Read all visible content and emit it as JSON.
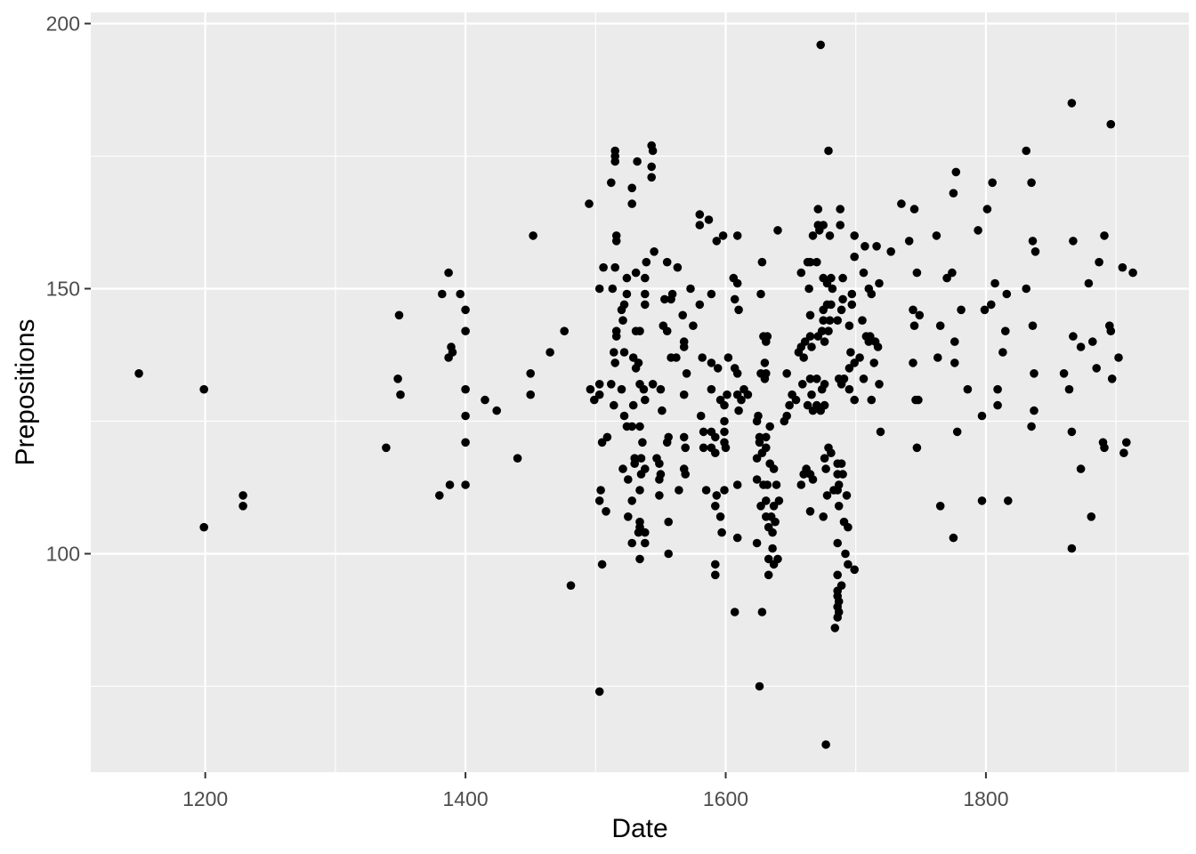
{
  "figure": {
    "background": "#FFFFFF"
  },
  "chart_data": {
    "type": "scatter",
    "title": "",
    "xlabel": "Date",
    "ylabel": "Prepositions",
    "xlim": [
      1112,
      1956
    ],
    "ylim": [
      58.8,
      202.1
    ],
    "x_major_ticks": [
      1200,
      1400,
      1600,
      1800
    ],
    "x_tick_labels": [
      "1200",
      "1400",
      "1600",
      "1800"
    ],
    "y_major_ticks": [
      100,
      150,
      200
    ],
    "y_tick_labels": [
      "100",
      "150",
      "200"
    ],
    "x_minor_ticks": [
      1300,
      1500,
      1700,
      1900
    ],
    "y_minor_ticks": [
      75,
      125,
      175
    ],
    "grid": true,
    "legend_position": "none",
    "panel_background": "#EBEBEB",
    "grid_color": "#FFFFFF",
    "point_color": "#000000",
    "tick_label_color": "#4D4D4D",
    "axis_title_color": "#000000",
    "tick_mark_color": "#333333",
    "point_radius_px": 4.8,
    "points": [
      [
        1149,
        134
      ],
      [
        1199,
        131
      ],
      [
        1199,
        105
      ],
      [
        1229,
        111
      ],
      [
        1229,
        109
      ],
      [
        1339,
        120
      ],
      [
        1348,
        133
      ],
      [
        1350,
        130
      ],
      [
        1380,
        111
      ],
      [
        1382,
        149
      ],
      [
        1387,
        153
      ],
      [
        1387,
        137
      ],
      [
        1388,
        113
      ],
      [
        1389,
        139
      ],
      [
        1390,
        138
      ],
      [
        1396,
        149
      ],
      [
        1349,
        145
      ],
      [
        1400,
        146
      ],
      [
        1400,
        142
      ],
      [
        1400,
        131
      ],
      [
        1400,
        126
      ],
      [
        1400,
        121
      ],
      [
        1400,
        113
      ],
      [
        1415,
        129
      ],
      [
        1424,
        127
      ],
      [
        1440,
        118
      ],
      [
        1450,
        134
      ],
      [
        1450,
        130
      ],
      [
        1452,
        160
      ],
      [
        1465,
        138
      ],
      [
        1476,
        142
      ],
      [
        1481,
        94
      ],
      [
        1495,
        166
      ],
      [
        1503,
        150
      ],
      [
        1506,
        154
      ],
      [
        1512,
        170
      ],
      [
        1513,
        150
      ],
      [
        1514,
        138
      ],
      [
        1515,
        176
      ],
      [
        1515,
        175
      ],
      [
        1515,
        174
      ],
      [
        1543,
        177
      ],
      [
        1544,
        176
      ],
      [
        1532,
        174
      ],
      [
        1543,
        173
      ],
      [
        1543,
        171
      ],
      [
        1528,
        169
      ],
      [
        1528,
        166
      ],
      [
        1580,
        164
      ],
      [
        1580,
        162
      ],
      [
        1587,
        163
      ],
      [
        1598,
        160
      ],
      [
        1593,
        159
      ],
      [
        1609,
        160
      ],
      [
        1516,
        160
      ],
      [
        1516,
        159
      ],
      [
        1545,
        157
      ],
      [
        1515,
        154
      ],
      [
        1555,
        155
      ],
      [
        1563,
        154
      ],
      [
        1539,
        155
      ],
      [
        1531,
        153
      ],
      [
        1524,
        152
      ],
      [
        1538,
        152
      ],
      [
        1524,
        149
      ],
      [
        1538,
        149
      ],
      [
        1522,
        147
      ],
      [
        1538,
        147
      ],
      [
        1559,
        149
      ],
      [
        1553,
        148
      ],
      [
        1558,
        148
      ],
      [
        1573,
        150
      ],
      [
        1589,
        149
      ],
      [
        1580,
        147
      ],
      [
        1520,
        146
      ],
      [
        1521,
        144
      ],
      [
        1567,
        145
      ],
      [
        1575,
        143
      ],
      [
        1516,
        142
      ],
      [
        1516,
        141
      ],
      [
        1531,
        142
      ],
      [
        1534,
        142
      ],
      [
        1552,
        143
      ],
      [
        1555,
        142
      ],
      [
        1568,
        140
      ],
      [
        1568,
        139
      ],
      [
        1522,
        138
      ],
      [
        1515,
        136
      ],
      [
        1529,
        137
      ],
      [
        1533,
        136
      ],
      [
        1531,
        135
      ],
      [
        1558,
        137
      ],
      [
        1562,
        137
      ],
      [
        1582,
        137
      ],
      [
        1589,
        136
      ],
      [
        1594,
        135
      ],
      [
        1570,
        134
      ],
      [
        1602,
        137
      ],
      [
        1607,
        135
      ],
      [
        1609,
        134
      ],
      [
        1606,
        152
      ],
      [
        1609,
        151
      ],
      [
        1607,
        148
      ],
      [
        1610,
        146
      ],
      [
        1496,
        131
      ],
      [
        1503,
        132
      ],
      [
        1503,
        130
      ],
      [
        1512,
        132
      ],
      [
        1499,
        129
      ],
      [
        1520,
        131
      ],
      [
        1534,
        132
      ],
      [
        1537,
        131
      ],
      [
        1544,
        132
      ],
      [
        1550,
        131
      ],
      [
        1568,
        130
      ],
      [
        1514,
        128
      ],
      [
        1529,
        128
      ],
      [
        1538,
        129
      ],
      [
        1551,
        127
      ],
      [
        1522,
        126
      ],
      [
        1524,
        124
      ],
      [
        1528,
        124
      ],
      [
        1534,
        124
      ],
      [
        1509,
        122
      ],
      [
        1505,
        121
      ],
      [
        1536,
        121
      ],
      [
        1556,
        122
      ],
      [
        1555,
        121
      ],
      [
        1568,
        122
      ],
      [
        1583,
        123
      ],
      [
        1589,
        123
      ],
      [
        1592,
        122
      ],
      [
        1569,
        120
      ],
      [
        1583,
        120
      ],
      [
        1589,
        120
      ],
      [
        1592,
        119
      ],
      [
        1599,
        123
      ],
      [
        1599,
        121
      ],
      [
        1600,
        120
      ],
      [
        1530,
        118
      ],
      [
        1535,
        118
      ],
      [
        1530,
        117
      ],
      [
        1521,
        116
      ],
      [
        1538,
        116
      ],
      [
        1535,
        115
      ],
      [
        1547,
        118
      ],
      [
        1549,
        117
      ],
      [
        1550,
        115
      ],
      [
        1549,
        114
      ],
      [
        1568,
        116
      ],
      [
        1569,
        115
      ],
      [
        1525,
        114
      ],
      [
        1528,
        110
      ],
      [
        1534,
        112
      ],
      [
        1504,
        112
      ],
      [
        1503,
        110
      ],
      [
        1508,
        108
      ],
      [
        1564,
        112
      ],
      [
        1549,
        111
      ],
      [
        1585,
        112
      ],
      [
        1593,
        111
      ],
      [
        1599,
        112
      ],
      [
        1592,
        109
      ],
      [
        1596,
        107
      ],
      [
        1525,
        107
      ],
      [
        1534,
        106
      ],
      [
        1533,
        104
      ],
      [
        1534,
        105
      ],
      [
        1538,
        104
      ],
      [
        1556,
        106
      ],
      [
        1528,
        102
      ],
      [
        1538,
        102
      ],
      [
        1597,
        104
      ],
      [
        1556,
        100
      ],
      [
        1534,
        99
      ],
      [
        1505,
        98
      ],
      [
        1592,
        98
      ],
      [
        1592,
        96
      ],
      [
        1589,
        131
      ],
      [
        1596,
        129
      ],
      [
        1599,
        128
      ],
      [
        1581,
        126
      ],
      [
        1601,
        130
      ],
      [
        1609,
        130
      ],
      [
        1599,
        125
      ],
      [
        1609,
        113
      ],
      [
        1609,
        103
      ],
      [
        1607,
        89
      ],
      [
        1679,
        176
      ],
      [
        1671,
        165
      ],
      [
        1688,
        165
      ],
      [
        1640,
        161
      ],
      [
        1671,
        162
      ],
      [
        1675,
        162
      ],
      [
        1667,
        160
      ],
      [
        1672,
        161
      ],
      [
        1688,
        162
      ],
      [
        1680,
        160
      ],
      [
        1699,
        160
      ],
      [
        1707,
        158
      ],
      [
        1716,
        158
      ],
      [
        1727,
        157
      ],
      [
        1699,
        156
      ],
      [
        1628,
        155
      ],
      [
        1663,
        155
      ],
      [
        1665,
        155
      ],
      [
        1670,
        155
      ],
      [
        1658,
        153
      ],
      [
        1706,
        153
      ],
      [
        1675,
        152
      ],
      [
        1681,
        152
      ],
      [
        1678,
        151
      ],
      [
        1690,
        152
      ],
      [
        1682,
        150
      ],
      [
        1664,
        150
      ],
      [
        1627,
        149
      ],
      [
        1710,
        150
      ],
      [
        1712,
        149
      ],
      [
        1718,
        151
      ],
      [
        1697,
        149
      ],
      [
        1690,
        148
      ],
      [
        1697,
        147
      ],
      [
        1678,
        147
      ],
      [
        1681,
        147
      ],
      [
        1675,
        146
      ],
      [
        1689,
        146
      ],
      [
        1665,
        145
      ],
      [
        1675,
        144
      ],
      [
        1680,
        144
      ],
      [
        1686,
        144
      ],
      [
        1705,
        144
      ],
      [
        1695,
        143
      ],
      [
        1632,
        141
      ],
      [
        1629,
        141
      ],
      [
        1631,
        140
      ],
      [
        1679,
        142
      ],
      [
        1674,
        142
      ],
      [
        1671,
        141
      ],
      [
        1665,
        141
      ],
      [
        1661,
        140
      ],
      [
        1676,
        140
      ],
      [
        1708,
        141
      ],
      [
        1711,
        141
      ],
      [
        1715,
        140
      ],
      [
        1710,
        140
      ],
      [
        1717,
        139
      ],
      [
        1658,
        139
      ],
      [
        1656,
        138
      ],
      [
        1660,
        137
      ],
      [
        1666,
        139
      ],
      [
        1696,
        138
      ],
      [
        1703,
        137
      ],
      [
        1699,
        136
      ],
      [
        1695,
        135
      ],
      [
        1714,
        136
      ],
      [
        1630,
        136
      ],
      [
        1627,
        134
      ],
      [
        1631,
        134
      ],
      [
        1647,
        134
      ],
      [
        1630,
        133
      ],
      [
        1659,
        132
      ],
      [
        1665,
        133
      ],
      [
        1670,
        133
      ],
      [
        1676,
        132
      ],
      [
        1674,
        131
      ],
      [
        1687,
        133
      ],
      [
        1691,
        133
      ],
      [
        1689,
        132
      ],
      [
        1706,
        133
      ],
      [
        1718,
        132
      ],
      [
        1695,
        131
      ],
      [
        1699,
        129
      ],
      [
        1712,
        129
      ],
      [
        1651,
        130
      ],
      [
        1654,
        129
      ],
      [
        1666,
        130
      ],
      [
        1670,
        128
      ],
      [
        1663,
        128
      ],
      [
        1667,
        127
      ],
      [
        1676,
        128
      ],
      [
        1673,
        127
      ],
      [
        1649,
        128
      ],
      [
        1647,
        126
      ],
      [
        1645,
        125
      ],
      [
        1625,
        126
      ],
      [
        1614,
        131
      ],
      [
        1612,
        129
      ],
      [
        1617,
        130
      ],
      [
        1610,
        127
      ],
      [
        1624,
        125
      ],
      [
        1634,
        124
      ],
      [
        1626,
        122
      ],
      [
        1631,
        122
      ],
      [
        1626,
        121
      ],
      [
        1631,
        120
      ],
      [
        1628,
        119
      ],
      [
        1624,
        118
      ],
      [
        1679,
        120
      ],
      [
        1681,
        119
      ],
      [
        1676,
        118
      ],
      [
        1662,
        116
      ],
      [
        1665,
        115
      ],
      [
        1660,
        115
      ],
      [
        1667,
        114
      ],
      [
        1658,
        113
      ],
      [
        1677,
        116
      ],
      [
        1686,
        117
      ],
      [
        1689,
        117
      ],
      [
        1686,
        115
      ],
      [
        1690,
        115
      ],
      [
        1634,
        117
      ],
      [
        1637,
        116
      ],
      [
        1639,
        113
      ],
      [
        1624,
        114
      ],
      [
        1629,
        113
      ],
      [
        1632,
        113
      ],
      [
        1687,
        113
      ],
      [
        1683,
        112
      ],
      [
        1686,
        112
      ],
      [
        1678,
        111
      ],
      [
        1693,
        111
      ],
      [
        1641,
        110
      ],
      [
        1637,
        109
      ],
      [
        1631,
        110
      ],
      [
        1627,
        109
      ],
      [
        1665,
        108
      ],
      [
        1687,
        109
      ],
      [
        1675,
        107
      ],
      [
        1691,
        106
      ],
      [
        1694,
        105
      ],
      [
        1631,
        107
      ],
      [
        1635,
        107
      ],
      [
        1638,
        106
      ],
      [
        1633,
        105
      ],
      [
        1636,
        104
      ],
      [
        1624,
        102
      ],
      [
        1636,
        101
      ],
      [
        1686,
        102
      ],
      [
        1692,
        100
      ],
      [
        1633,
        99
      ],
      [
        1640,
        99
      ],
      [
        1637,
        98
      ],
      [
        1633,
        96
      ],
      [
        1694,
        98
      ],
      [
        1699,
        97
      ],
      [
        1686,
        96
      ],
      [
        1689,
        94
      ],
      [
        1686,
        93
      ],
      [
        1686,
        92
      ],
      [
        1687,
        91
      ],
      [
        1686,
        90
      ],
      [
        1687,
        89
      ],
      [
        1686,
        88
      ],
      [
        1684,
        86
      ],
      [
        1628,
        89
      ],
      [
        1719,
        123
      ],
      [
        1866,
        185
      ],
      [
        1896,
        181
      ],
      [
        1831,
        176
      ],
      [
        1777,
        172
      ],
      [
        1805,
        170
      ],
      [
        1835,
        170
      ],
      [
        1775,
        168
      ],
      [
        1735,
        166
      ],
      [
        1745,
        165
      ],
      [
        1801,
        165
      ],
      [
        1794,
        161
      ],
      [
        1741,
        159
      ],
      [
        1762,
        160
      ],
      [
        1836,
        159
      ],
      [
        1838,
        157
      ],
      [
        1867,
        159
      ],
      [
        1891,
        160
      ],
      [
        1887,
        155
      ],
      [
        1905,
        154
      ],
      [
        1913,
        153
      ],
      [
        1747,
        153
      ],
      [
        1770,
        152
      ],
      [
        1774,
        153
      ],
      [
        1879,
        151
      ],
      [
        1807,
        151
      ],
      [
        1816,
        149
      ],
      [
        1831,
        150
      ],
      [
        1744,
        146
      ],
      [
        1749,
        145
      ],
      [
        1745,
        143
      ],
      [
        1765,
        143
      ],
      [
        1781,
        146
      ],
      [
        1799,
        146
      ],
      [
        1804,
        147
      ],
      [
        1815,
        142
      ],
      [
        1836,
        143
      ],
      [
        1895,
        143
      ],
      [
        1896,
        142
      ],
      [
        1776,
        140
      ],
      [
        1867,
        141
      ],
      [
        1882,
        140
      ],
      [
        1873,
        139
      ],
      [
        1763,
        137
      ],
      [
        1744,
        136
      ],
      [
        1776,
        136
      ],
      [
        1813,
        138
      ],
      [
        1902,
        137
      ],
      [
        1837,
        134
      ],
      [
        1860,
        134
      ],
      [
        1885,
        135
      ],
      [
        1897,
        133
      ],
      [
        1864,
        131
      ],
      [
        1786,
        131
      ],
      [
        1809,
        131
      ],
      [
        1746,
        129
      ],
      [
        1748,
        129
      ],
      [
        1809,
        128
      ],
      [
        1797,
        126
      ],
      [
        1837,
        127
      ],
      [
        1835,
        124
      ],
      [
        1778,
        123
      ],
      [
        1866,
        123
      ],
      [
        1747,
        120
      ],
      [
        1890,
        121
      ],
      [
        1891,
        120
      ],
      [
        1908,
        121
      ],
      [
        1906,
        119
      ],
      [
        1873,
        116
      ],
      [
        1817,
        110
      ],
      [
        1797,
        110
      ],
      [
        1765,
        109
      ],
      [
        1881,
        107
      ],
      [
        1775,
        103
      ],
      [
        1866,
        101
      ],
      [
        1673,
        196
      ],
      [
        1626,
        75
      ],
      [
        1503,
        74
      ],
      [
        1677,
        64
      ]
    ]
  }
}
